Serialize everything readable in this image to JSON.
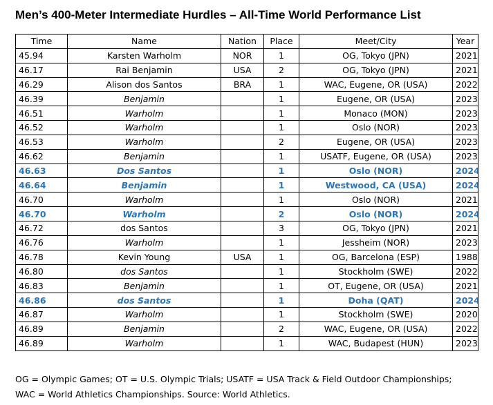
{
  "title": "Men’s 400-Meter Intermediate Hurdles – All-Time World Performance List",
  "columns": [
    "Time",
    "Name",
    "Nation",
    "Place",
    "Meet/City",
    "Year"
  ],
  "rows": [
    {
      "time": "45.94",
      "name": "Karsten Warholm",
      "nation": "NOR",
      "place": "1",
      "meet": "OG, Tokyo (JPN)",
      "year": "2021",
      "italic": false,
      "highlight": false
    },
    {
      "time": "46.17",
      "name": "Rai Benjamin",
      "nation": "USA",
      "place": "2",
      "meet": "OG, Tokyo (JPN)",
      "year": "2021",
      "italic": false,
      "highlight": false
    },
    {
      "time": "46.29",
      "name": "Alison dos Santos",
      "nation": "BRA",
      "place": "1",
      "meet": "WAC, Eugene, OR (USA)",
      "year": "2022",
      "italic": false,
      "highlight": false
    },
    {
      "time": "46.39",
      "name": "Benjamin",
      "nation": "",
      "place": "1",
      "meet": "Eugene, OR (USA)",
      "year": "2023",
      "italic": true,
      "highlight": false
    },
    {
      "time": "46.51",
      "name": "Warholm",
      "nation": "",
      "place": "1",
      "meet": "Monaco (MON)",
      "year": "2023",
      "italic": true,
      "highlight": false
    },
    {
      "time": "46.52",
      "name": "Warholm",
      "nation": "",
      "place": "1",
      "meet": "Oslo (NOR)",
      "year": "2023",
      "italic": true,
      "highlight": false
    },
    {
      "time": "46.53",
      "name": "Warholm",
      "nation": "",
      "place": "2",
      "meet": "Eugene, OR (USA)",
      "year": "2023",
      "italic": true,
      "highlight": false
    },
    {
      "time": "46.62",
      "name": "Benjamin",
      "nation": "",
      "place": "1",
      "meet": "USATF, Eugene, OR (USA)",
      "year": "2023",
      "italic": true,
      "highlight": false
    },
    {
      "time": "46.63",
      "name": "Dos Santos",
      "nation": "",
      "place": "1",
      "meet": "Oslo (NOR)",
      "year": "2024",
      "italic": true,
      "highlight": true
    },
    {
      "time": "46.64",
      "name": "Benjamin",
      "nation": "",
      "place": "1",
      "meet": "Westwood, CA (USA)",
      "year": "2024",
      "italic": true,
      "highlight": true
    },
    {
      "time": "46.70",
      "name": "Warholm",
      "nation": "",
      "place": "1",
      "meet": "Oslo (NOR)",
      "year": "2021",
      "italic": true,
      "highlight": false
    },
    {
      "time": "46.70",
      "name": "Warholm",
      "nation": "",
      "place": "2",
      "meet": "Oslo (NOR)",
      "year": "2024",
      "italic": true,
      "highlight": true
    },
    {
      "time": "46.72",
      "name": "dos Santos",
      "nation": "",
      "place": "3",
      "meet": "OG, Tokyo (JPN)",
      "year": "2021",
      "italic": false,
      "highlight": false
    },
    {
      "time": "46.76",
      "name": "Warholm",
      "nation": "",
      "place": "1",
      "meet": "Jessheim (NOR)",
      "year": "2023",
      "italic": true,
      "highlight": false
    },
    {
      "time": "46.78",
      "name": "Kevin Young",
      "nation": "USA",
      "place": "1",
      "meet": "OG, Barcelona (ESP)",
      "year": "1988",
      "italic": false,
      "highlight": false
    },
    {
      "time": "46.80",
      "name": "dos Santos",
      "nation": "",
      "place": "1",
      "meet": "Stockholm (SWE)",
      "year": "2022",
      "italic": true,
      "highlight": false
    },
    {
      "time": "46.83",
      "name": "Benjamin",
      "nation": "",
      "place": "1",
      "meet": "OT, Eugene, OR (USA)",
      "year": "2021",
      "italic": true,
      "highlight": false
    },
    {
      "time": "46.86",
      "name": "dos Santos",
      "nation": "",
      "place": "1",
      "meet": "Doha (QAT)",
      "year": "2024",
      "italic": true,
      "highlight": true
    },
    {
      "time": "46.87",
      "name": "Warholm",
      "nation": "",
      "place": "1",
      "meet": "Stockholm (SWE)",
      "year": "2020",
      "italic": true,
      "highlight": false
    },
    {
      "time": "46.89",
      "name": "Benjamin",
      "nation": "",
      "place": "2",
      "meet": "WAC, Eugene, OR (USA)",
      "year": "2022",
      "italic": true,
      "highlight": false
    },
    {
      "time": "46.89",
      "name": "Warholm",
      "nation": "",
      "place": "1",
      "meet": "WAC, Budapest (HUN)",
      "year": "2023",
      "italic": true,
      "highlight": false
    }
  ],
  "highlight_color": "#2e75b6",
  "footnote": {
    "line1": "OG = Olympic Games; OT = U.S. Olympic Trials; USATF = USA Track & Field Outdoor Championships;",
    "line2": "WAC = World Athletics Championships. Source: World Athletics."
  }
}
